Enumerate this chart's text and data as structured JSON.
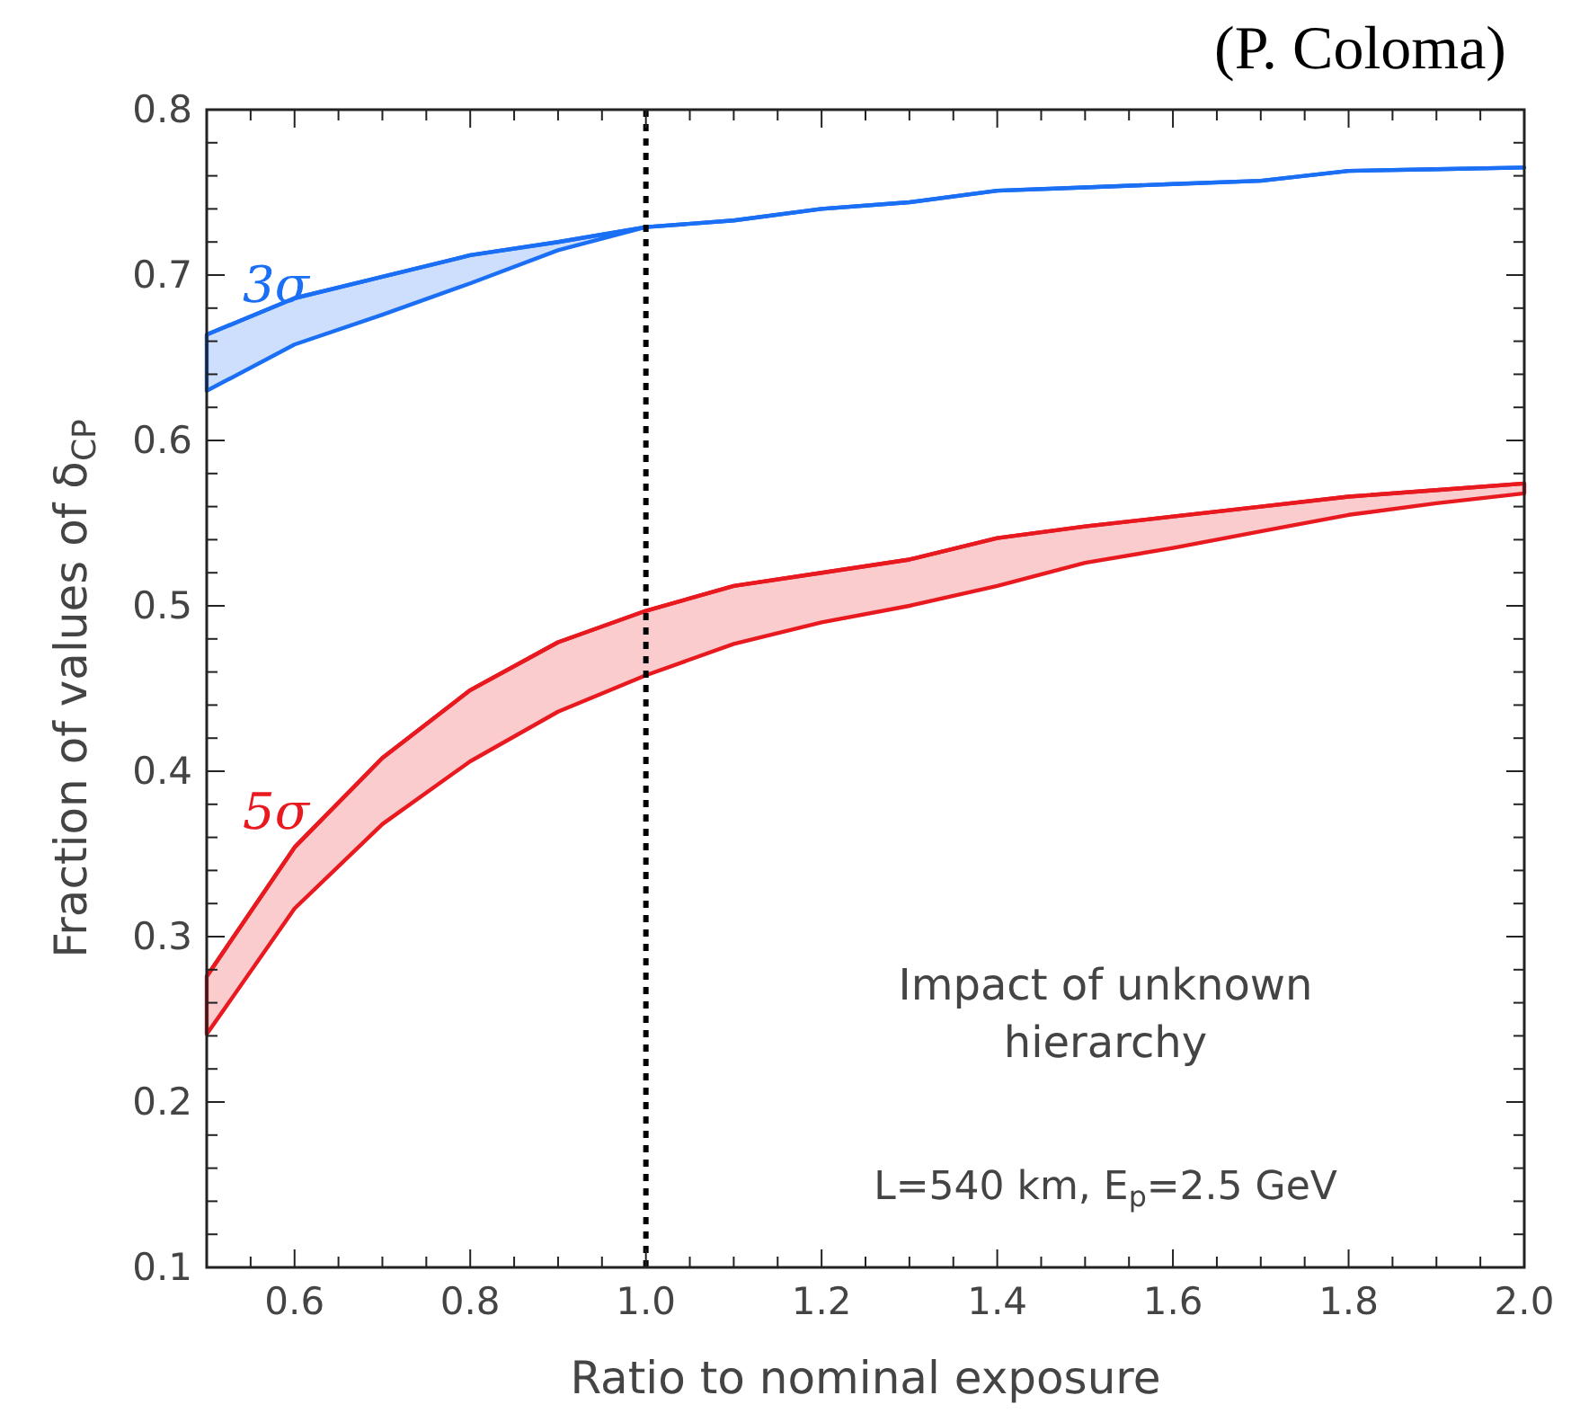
{
  "chart_data": {
    "type": "line",
    "xlabel": "Ratio to nominal exposure",
    "ylabel": "Fraction of values of δ$_{CP}$",
    "x": [
      0.5,
      0.6,
      0.7,
      0.8,
      0.9,
      1.0,
      1.1,
      1.2,
      1.3,
      1.4,
      1.5,
      1.6,
      1.7,
      1.8,
      1.9,
      2.0
    ],
    "series": [
      {
        "name": "3σ",
        "color": "#1a6ff5",
        "values": [
          0.664,
          0.686,
          0.699,
          0.712,
          0.72,
          0.729,
          0.733,
          0.74,
          0.744,
          0.751,
          0.753,
          0.755,
          0.757,
          0.763,
          0.764,
          0.765
        ],
        "upper": [
          0.664,
          0.686,
          0.699,
          0.712,
          0.72,
          0.729,
          0.733,
          0.74,
          0.744,
          0.751,
          0.753,
          0.755,
          0.757,
          0.763,
          0.764,
          0.765
        ],
        "lower": [
          0.63,
          0.658,
          0.676,
          0.695,
          0.715,
          0.729,
          0.733,
          0.74,
          0.744,
          0.751,
          0.753,
          0.755,
          0.757,
          0.763,
          0.764,
          0.765
        ]
      },
      {
        "name": "5σ",
        "color": "#e8191f",
        "values": [
          0.276,
          0.354,
          0.408,
          0.449,
          0.478,
          0.497,
          0.512,
          0.52,
          0.528,
          0.541,
          0.548,
          0.554,
          0.56,
          0.566,
          0.57,
          0.574
        ],
        "upper": [
          0.276,
          0.354,
          0.408,
          0.449,
          0.478,
          0.497,
          0.512,
          0.52,
          0.528,
          0.541,
          0.548,
          0.554,
          0.56,
          0.566,
          0.57,
          0.574
        ],
        "lower": [
          0.241,
          0.317,
          0.368,
          0.406,
          0.436,
          0.458,
          0.477,
          0.49,
          0.5,
          0.512,
          0.526,
          0.535,
          0.545,
          0.555,
          0.562,
          0.568
        ]
      }
    ],
    "xlim": [
      0.5,
      2.0
    ],
    "ylim": [
      0.1,
      0.8
    ],
    "xticks": [
      {
        "value": 0.5,
        "label": null
      },
      {
        "value": 0.55,
        "label": null
      },
      0.6,
      {
        "value": 0.65,
        "label": null
      },
      {
        "value": 0.7,
        "label": null
      },
      {
        "value": 0.75,
        "label": null
      },
      0.8,
      {
        "value": 0.85,
        "label": null
      },
      {
        "value": 0.9,
        "label": null
      },
      {
        "value": 0.95,
        "label": null
      },
      {
        "value": 1.0,
        "label": "1.0"
      },
      {
        "value": 1.05,
        "label": null
      },
      {
        "value": 1.1,
        "label": null
      },
      {
        "value": 1.15,
        "label": null
      },
      1.2,
      {
        "value": 1.25,
        "label": null
      },
      {
        "value": 1.3,
        "label": null
      },
      {
        "value": 1.35,
        "label": null
      },
      1.4,
      {
        "value": 1.45,
        "label": null
      },
      {
        "value": 1.5,
        "label": null
      },
      {
        "value": 1.55,
        "label": null
      },
      1.6,
      {
        "value": 1.65,
        "label": null
      },
      {
        "value": 1.7,
        "label": null
      },
      {
        "value": 1.75,
        "label": null
      },
      1.8,
      {
        "value": 1.85,
        "label": null
      },
      {
        "value": 1.9,
        "label": null
      },
      {
        "value": 1.95,
        "label": null
      },
      {
        "value": 2.0,
        "label": "2.0"
      }
    ],
    "yticks": [
      0.1,
      {
        "value": 0.12,
        "label": null
      },
      {
        "value": 0.14,
        "label": null
      },
      {
        "value": 0.16,
        "label": null
      },
      {
        "value": 0.18,
        "label": null
      },
      0.2,
      {
        "value": 0.22,
        "label": null
      },
      {
        "value": 0.24,
        "label": null
      },
      {
        "value": 0.26,
        "label": null
      },
      {
        "value": 0.28,
        "label": null
      },
      0.3,
      {
        "value": 0.32,
        "label": null
      },
      {
        "value": 0.34,
        "label": null
      },
      {
        "value": 0.36,
        "label": null
      },
      {
        "value": 0.38,
        "label": null
      },
      0.4,
      {
        "value": 0.42,
        "label": null
      },
      {
        "value": 0.44,
        "label": null
      },
      {
        "value": 0.46,
        "label": null
      },
      {
        "value": 0.48,
        "label": null
      },
      0.5,
      {
        "value": 0.52,
        "label": null
      },
      {
        "value": 0.54,
        "label": null
      },
      {
        "value": 0.56,
        "label": null
      },
      {
        "value": 0.58,
        "label": null
      },
      0.6,
      {
        "value": 0.62,
        "label": null
      },
      {
        "value": 0.64,
        "label": null
      },
      {
        "value": 0.66,
        "label": null
      },
      {
        "value": 0.68,
        "label": null
      },
      0.7,
      {
        "value": 0.72,
        "label": null
      },
      {
        "value": 0.74,
        "label": null
      },
      {
        "value": 0.76,
        "label": null
      },
      {
        "value": 0.78,
        "label": null
      },
      0.8
    ],
    "ref_lines": [
      {
        "axis": "x",
        "value": 1.0,
        "color": "#000000",
        "line_style": "dotted"
      }
    ],
    "annotations": [
      "(P. Coloma)",
      "Impact of unknown hierarchy",
      "L=540 km, E$_{p}$=2.5 GeV"
    ],
    "grid": false,
    "marker": "none"
  }
}
